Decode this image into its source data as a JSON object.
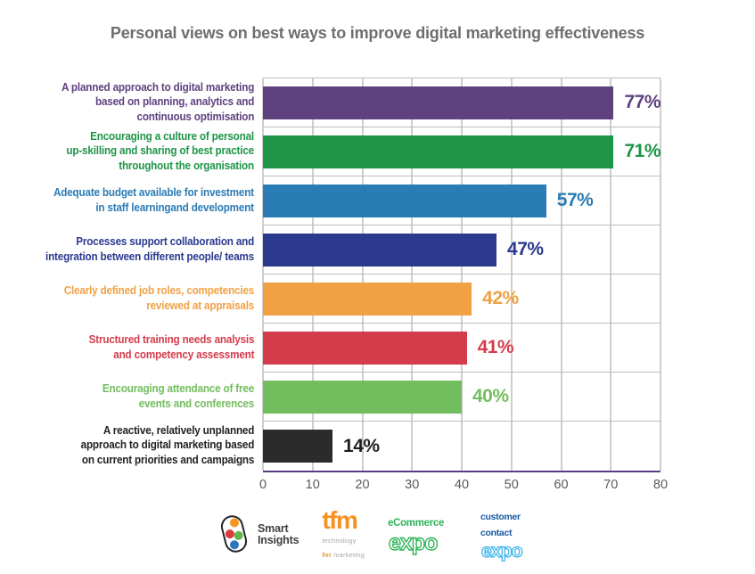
{
  "page_title": "Personal views on best ways to improve digital marketing effectiveness",
  "chart_data": {
    "type": "bar",
    "orientation": "horizontal",
    "title": "Personal views on best ways to improve digital marketing effectiveness",
    "title_color": "#6d6e71",
    "xlim": [
      0,
      80
    ],
    "x_ticks": [
      "0",
      "10",
      "20",
      "30",
      "40",
      "50",
      "60",
      "70",
      "80"
    ],
    "grid": {
      "vertical_gridlines_every": 10,
      "vertical_gridline_color": "#9c9c9c",
      "row_separator_color": "#bdbdbd",
      "baseline_color": "#5a3c85"
    },
    "legend": "none",
    "bars": [
      {
        "label": "A planned approach to digital marketing\nbased on planning, analytics and\ncontinuous optimisation",
        "value": 77,
        "value_label": "77%",
        "color": "#604180"
      },
      {
        "label": "Encouraging a culture of personal\nup-skilling and sharing of best practice\nthroughout the organisation",
        "value": 71,
        "value_label": "71%",
        "color": "#1e9548"
      },
      {
        "label": "Adequate budget available for investment\nin staff learningand development",
        "value": 57,
        "value_label": "57%",
        "color": "#2a7cb5"
      },
      {
        "label": "Processes support collaboration and\nintegration between different people/ teams",
        "value": 47,
        "value_label": "47%",
        "color": "#2b3a8f"
      },
      {
        "label": "Clearly defined job roles, competencies\nreviewed at appraisals",
        "value": 42,
        "value_label": "42%",
        "color": "#f0a144"
      },
      {
        "label": "Structured training needs analysis\nand competency assessment",
        "value": 41,
        "value_label": "41%",
        "color": "#d43c4c"
      },
      {
        "label": "Encouraging attendance of free\nevents and conferences",
        "value": 40,
        "value_label": "40%",
        "color": "#72bd5e"
      },
      {
        "label": "A reactive, relatively unplanned\napproach to digital marketing based\non current priorities and campaigns",
        "value": 14,
        "value_label": "14%",
        "color": "#2b2b2b",
        "label_color": "#231f20"
      }
    ]
  },
  "footer": {
    "logos": [
      {
        "name": "Smart Insights",
        "line1": "Smart",
        "line2": "Insights",
        "colors": [
          "#f7941e",
          "#dd3b3b",
          "#63b64d",
          "#2f76bc",
          "#26242b"
        ]
      },
      {
        "name": "tfm",
        "wordmark": "tfm",
        "tagline_line1": "technology",
        "tagline_for": "for",
        "tagline_rest": " marketing",
        "colors": [
          "#f6921e",
          "#a6a8ab"
        ]
      },
      {
        "name": "eCommerce Expo",
        "line1": "eCommerce",
        "line2": "expo",
        "colors": [
          "#2fb457"
        ]
      },
      {
        "name": "Customer Contact Expo",
        "line1": "customer",
        "line2": "contact",
        "line3": "expo",
        "colors": [
          "#1d5aa4",
          "#41b6e8"
        ]
      }
    ]
  }
}
